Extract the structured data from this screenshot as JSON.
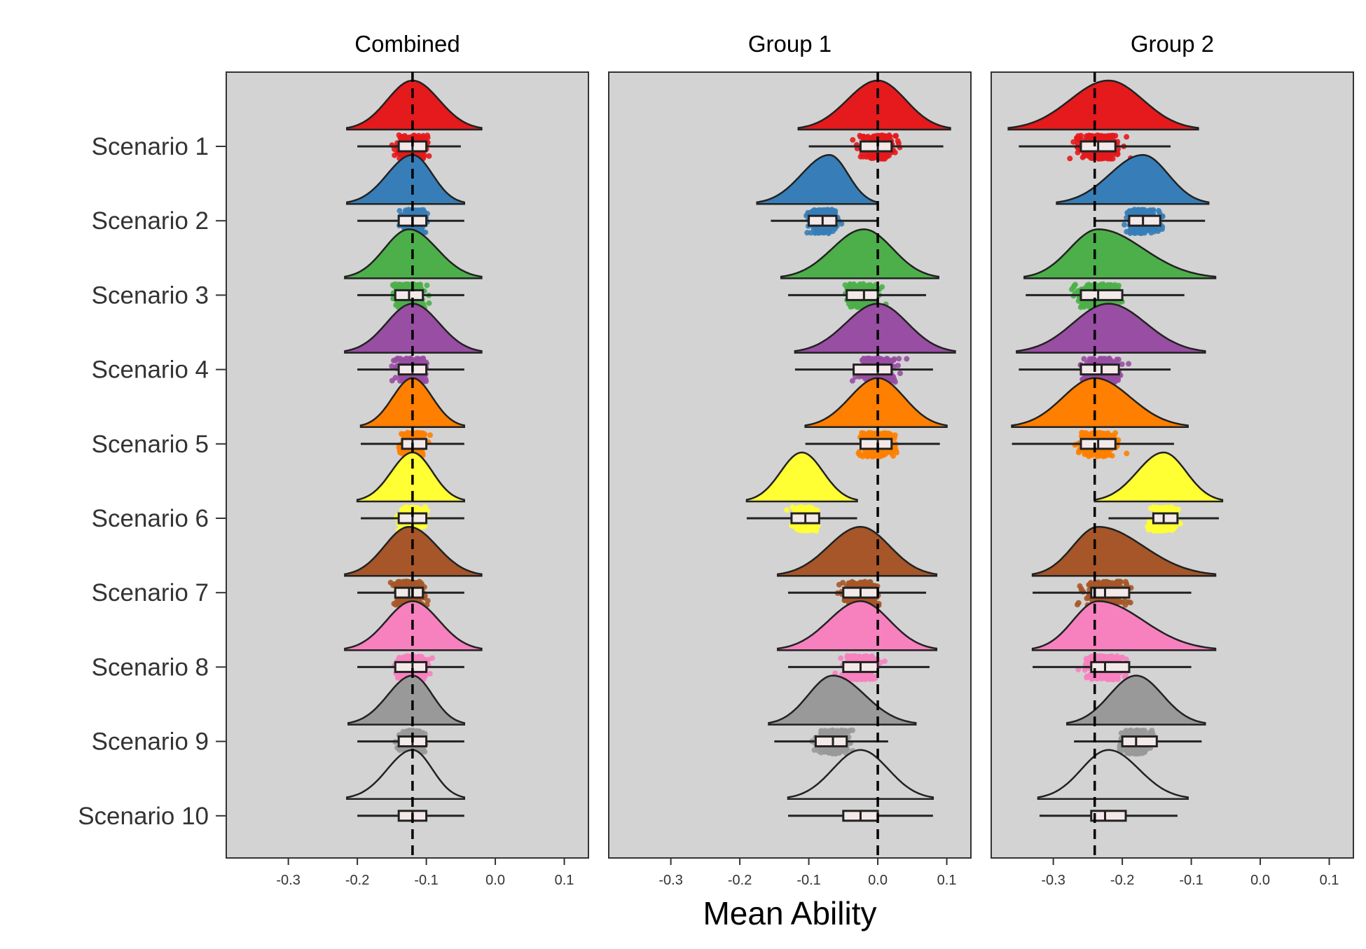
{
  "chart_data": {
    "type": "raincloud",
    "facets": [
      "Combined",
      "Group 1",
      "Group 2"
    ],
    "xlabel": "Mean Ability",
    "xticks": [
      -0.3,
      -0.2,
      -0.1,
      0.0,
      0.1
    ],
    "xtick_labels": [
      "-0.3",
      "-0.2",
      "-0.1",
      "0.0",
      "0.1"
    ],
    "xlim": [
      -0.39,
      0.135
    ],
    "grid": false,
    "categories": [
      "Scenario 1",
      "Scenario 2",
      "Scenario 3",
      "Scenario 4",
      "Scenario 5",
      "Scenario 6",
      "Scenario 7",
      "Scenario 8",
      "Scenario 9",
      "Scenario 10"
    ],
    "colors": [
      "#e41a1c",
      "#377eb8",
      "#4daf4a",
      "#984ea3",
      "#ff7f00",
      "#ffff33",
      "#a65628",
      "#f781bf",
      "#999999",
      "#d3d3d3"
    ],
    "reference_lines": [
      -0.12,
      0.0,
      -0.24
    ],
    "panel_background": "#d3d3d3",
    "series": [
      {
        "facet": "Combined",
        "data": [
          {
            "scenario": "Scenario 1",
            "mode": -0.12,
            "q1": -0.14,
            "median": -0.12,
            "q3": -0.1,
            "min": -0.2,
            "max": -0.05,
            "dmin": -0.215,
            "dmax": -0.02,
            "pmin": -0.215,
            "pmax": -0.018
          },
          {
            "scenario": "Scenario 2",
            "mode": -0.12,
            "q1": -0.14,
            "median": -0.12,
            "q3": -0.1,
            "min": -0.2,
            "max": -0.045,
            "dmin": -0.215,
            "dmax": -0.045,
            "pmin": -0.21,
            "pmax": -0.04
          },
          {
            "scenario": "Scenario 3",
            "mode": -0.125,
            "q1": -0.145,
            "median": -0.125,
            "q3": -0.105,
            "min": -0.2,
            "max": -0.045,
            "dmin": -0.218,
            "dmax": -0.02,
            "pmin": -0.22,
            "pmax": -0.02
          },
          {
            "scenario": "Scenario 4",
            "mode": -0.12,
            "q1": -0.14,
            "median": -0.12,
            "q3": -0.1,
            "min": -0.2,
            "max": -0.045,
            "dmin": -0.218,
            "dmax": -0.02,
            "pmin": -0.215,
            "pmax": -0.02
          },
          {
            "scenario": "Scenario 5",
            "mode": -0.12,
            "q1": -0.135,
            "median": -0.12,
            "q3": -0.1,
            "min": -0.195,
            "max": -0.045,
            "dmin": -0.195,
            "dmax": -0.045,
            "pmin": -0.195,
            "pmax": -0.04
          },
          {
            "scenario": "Scenario 6",
            "mode": -0.12,
            "q1": -0.14,
            "median": -0.12,
            "q3": -0.1,
            "min": -0.195,
            "max": -0.045,
            "dmin": -0.2,
            "dmax": -0.045,
            "pmin": -0.21,
            "pmax": -0.045
          },
          {
            "scenario": "Scenario 7",
            "mode": -0.125,
            "q1": -0.145,
            "median": -0.125,
            "q3": -0.105,
            "min": -0.2,
            "max": -0.045,
            "dmin": -0.218,
            "dmax": -0.02,
            "pmin": -0.215,
            "pmax": -0.02
          },
          {
            "scenario": "Scenario 8",
            "mode": -0.12,
            "q1": -0.145,
            "median": -0.12,
            "q3": -0.1,
            "min": -0.2,
            "max": -0.045,
            "dmin": -0.218,
            "dmax": -0.02,
            "pmin": -0.215,
            "pmax": -0.025
          },
          {
            "scenario": "Scenario 9",
            "mode": -0.12,
            "q1": -0.14,
            "median": -0.12,
            "q3": -0.1,
            "min": -0.2,
            "max": -0.045,
            "dmin": -0.213,
            "dmax": -0.045,
            "pmin": -0.215,
            "pmax": -0.04
          },
          {
            "scenario": "Scenario 10",
            "mode": -0.12,
            "q1": -0.14,
            "median": -0.12,
            "q3": -0.1,
            "min": -0.2,
            "max": -0.045,
            "dmin": -0.215,
            "dmax": -0.045,
            "pmin": null,
            "pmax": null
          }
        ]
      },
      {
        "facet": "Group 1",
        "data": [
          {
            "scenario": "Scenario 1",
            "mode": 0.0,
            "q1": -0.025,
            "median": 0.0,
            "q3": 0.02,
            "min": -0.1,
            "max": 0.095,
            "dmin": -0.115,
            "dmax": 0.105,
            "pmin": -0.115,
            "pmax": 0.105
          },
          {
            "scenario": "Scenario 2",
            "mode": -0.07,
            "q1": -0.1,
            "median": -0.08,
            "q3": -0.06,
            "min": -0.155,
            "max": 0.0,
            "dmin": -0.175,
            "dmax": 0.0,
            "pmin": -0.175,
            "pmax": 0.0
          },
          {
            "scenario": "Scenario 3",
            "mode": -0.02,
            "q1": -0.045,
            "median": -0.02,
            "q3": 0.0,
            "min": -0.13,
            "max": 0.07,
            "dmin": -0.14,
            "dmax": 0.088,
            "pmin": -0.14,
            "pmax": 0.088
          },
          {
            "scenario": "Scenario 4",
            "mode": 0.0,
            "q1": -0.035,
            "median": 0.0,
            "q3": 0.02,
            "min": -0.12,
            "max": 0.08,
            "dmin": -0.12,
            "dmax": 0.112,
            "pmin": -0.12,
            "pmax": 0.115
          },
          {
            "scenario": "Scenario 5",
            "mode": 0.0,
            "q1": -0.025,
            "median": 0.0,
            "q3": 0.02,
            "min": -0.105,
            "max": 0.09,
            "dmin": -0.105,
            "dmax": 0.1,
            "pmin": -0.105,
            "pmax": 0.105
          },
          {
            "scenario": "Scenario 6",
            "mode": -0.11,
            "q1": -0.125,
            "median": -0.105,
            "q3": -0.085,
            "min": -0.19,
            "max": -0.03,
            "dmin": -0.19,
            "dmax": -0.03,
            "pmin": -0.195,
            "pmax": -0.03
          },
          {
            "scenario": "Scenario 7",
            "mode": -0.025,
            "q1": -0.05,
            "median": -0.025,
            "q3": 0.0,
            "min": -0.13,
            "max": 0.07,
            "dmin": -0.145,
            "dmax": 0.085,
            "pmin": -0.145,
            "pmax": 0.088
          },
          {
            "scenario": "Scenario 8",
            "mode": -0.025,
            "q1": -0.05,
            "median": -0.025,
            "q3": 0.0,
            "min": -0.13,
            "max": 0.075,
            "dmin": -0.145,
            "dmax": 0.085,
            "pmin": -0.145,
            "pmax": 0.088
          },
          {
            "scenario": "Scenario 9",
            "mode": -0.065,
            "q1": -0.09,
            "median": -0.065,
            "q3": -0.045,
            "min": -0.15,
            "max": 0.015,
            "dmin": -0.158,
            "dmax": 0.055,
            "pmin": -0.158,
            "pmax": 0.058
          },
          {
            "scenario": "Scenario 10",
            "mode": -0.025,
            "q1": -0.05,
            "median": -0.025,
            "q3": 0.0,
            "min": -0.13,
            "max": 0.08,
            "dmin": -0.13,
            "dmax": 0.08,
            "pmin": null,
            "pmax": null
          }
        ]
      },
      {
        "facet": "Group 2",
        "data": [
          {
            "scenario": "Scenario 1",
            "mode": -0.22,
            "q1": -0.26,
            "median": -0.235,
            "q3": -0.21,
            "min": -0.35,
            "max": -0.13,
            "dmin": -0.365,
            "dmax": -0.09,
            "pmin": -0.37,
            "pmax": -0.09
          },
          {
            "scenario": "Scenario 2",
            "mode": -0.17,
            "q1": -0.19,
            "median": -0.17,
            "q3": -0.145,
            "min": -0.24,
            "max": -0.08,
            "dmin": -0.295,
            "dmax": -0.075,
            "pmin": -0.295,
            "pmax": -0.075
          },
          {
            "scenario": "Scenario 3",
            "mode": -0.235,
            "q1": -0.26,
            "median": -0.235,
            "q3": -0.2,
            "min": -0.34,
            "max": -0.11,
            "dmin": -0.342,
            "dmax": -0.065,
            "pmin": -0.345,
            "pmax": -0.065
          },
          {
            "scenario": "Scenario 4",
            "mode": -0.22,
            "q1": -0.26,
            "median": -0.23,
            "q3": -0.205,
            "min": -0.35,
            "max": -0.13,
            "dmin": -0.353,
            "dmax": -0.08,
            "pmin": -0.353,
            "pmax": -0.08
          },
          {
            "scenario": "Scenario 5",
            "mode": -0.24,
            "q1": -0.26,
            "median": -0.235,
            "q3": -0.21,
            "min": -0.36,
            "max": -0.125,
            "dmin": -0.36,
            "dmax": -0.105,
            "pmin": -0.365,
            "pmax": -0.105
          },
          {
            "scenario": "Scenario 6",
            "mode": -0.14,
            "q1": -0.155,
            "median": -0.14,
            "q3": -0.12,
            "min": -0.22,
            "max": -0.06,
            "dmin": -0.24,
            "dmax": -0.055,
            "pmin": -0.22,
            "pmax": -0.05
          },
          {
            "scenario": "Scenario 7",
            "mode": -0.235,
            "q1": -0.245,
            "median": -0.225,
            "q3": -0.19,
            "min": -0.33,
            "max": -0.1,
            "dmin": -0.33,
            "dmax": -0.065,
            "pmin": -0.33,
            "pmax": -0.065
          },
          {
            "scenario": "Scenario 8",
            "mode": -0.235,
            "q1": -0.245,
            "median": -0.225,
            "q3": -0.19,
            "min": -0.33,
            "max": -0.1,
            "dmin": -0.33,
            "dmax": -0.065,
            "pmin": -0.335,
            "pmax": -0.065
          },
          {
            "scenario": "Scenario 9",
            "mode": -0.18,
            "q1": -0.2,
            "median": -0.18,
            "q3": -0.15,
            "min": -0.27,
            "max": -0.085,
            "dmin": -0.28,
            "dmax": -0.08,
            "pmin": -0.275,
            "pmax": -0.08
          },
          {
            "scenario": "Scenario 10",
            "mode": -0.22,
            "q1": -0.245,
            "median": -0.225,
            "q3": -0.195,
            "min": -0.32,
            "max": -0.12,
            "dmin": -0.322,
            "dmax": -0.105,
            "pmin": null,
            "pmax": null
          }
        ]
      }
    ]
  }
}
